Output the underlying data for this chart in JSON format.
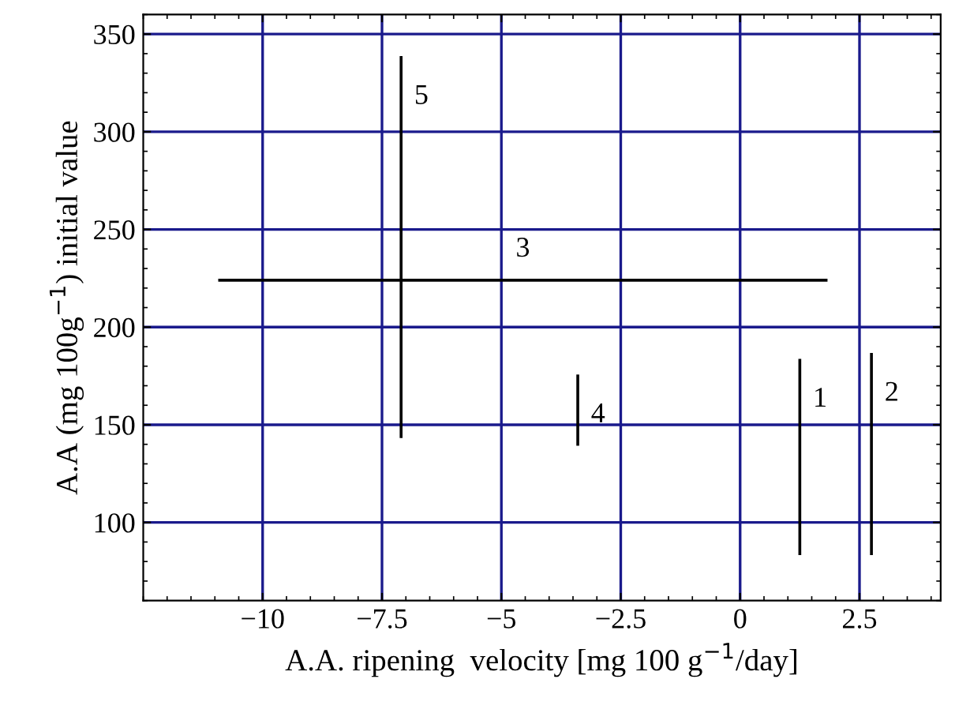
{
  "chart_data": {
    "type": "line",
    "marker": "none",
    "line_style": "solid",
    "xlabel": "A.A. ripening  velocity [mg 100 g$^{−1}$/day]",
    "ylabel": "A.A (mg 100g$^{−1}$) initial value",
    "series": [
      {
        "name": "1",
        "color": "#000000",
        "x": [
          1.25,
          1.25
        ],
        "values": [
          84,
          183
        ]
      },
      {
        "name": "2",
        "color": "#000000",
        "x": [
          2.75,
          2.75
        ],
        "values": [
          84,
          186
        ]
      },
      {
        "name": "3",
        "color": "#000000",
        "x": [
          -10.9,
          1.8
        ],
        "values": [
          224,
          224
        ]
      },
      {
        "name": "4",
        "color": "#000000",
        "x": [
          -3.4,
          -3.4
        ],
        "values": [
          140,
          175
        ]
      },
      {
        "name": "5",
        "color": "#000000",
        "x": [
          -7.1,
          -7.1
        ],
        "values": [
          144,
          338
        ]
      }
    ],
    "xlim": [
      -12.5,
      4.2
    ],
    "ylim": [
      60,
      360
    ],
    "xticks": [
      {
        "value": -10,
        "label": "−10"
      },
      {
        "value": -7.5,
        "label": "−7.5"
      },
      {
        "value": -5,
        "label": "−5"
      },
      {
        "value": -2.5,
        "label": "−2.5"
      },
      0,
      2.5
    ],
    "yticks": [
      100,
      150,
      200,
      250,
      300,
      350
    ],
    "grid": true
  }
}
